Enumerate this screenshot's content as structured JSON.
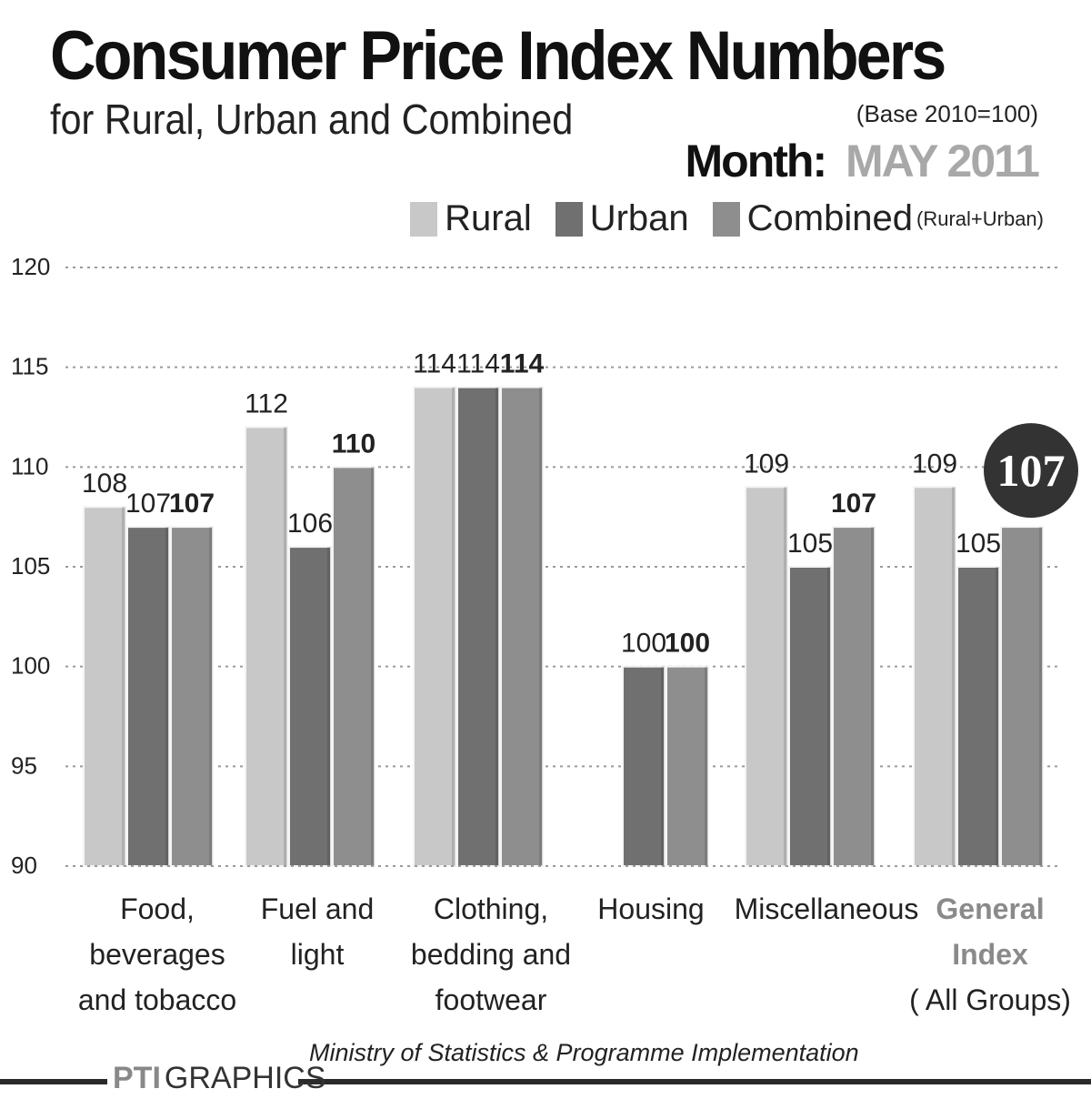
{
  "header": {
    "title": "Consumer Price Index Numbers",
    "subtitle": "for Rural, Urban and Combined",
    "base": "(Base 2010=100)",
    "month_label": "Month:",
    "month_value": "MAY 2011"
  },
  "legend": {
    "rural": "Rural",
    "urban": "Urban",
    "combined": "Combined",
    "combined_note": "(Rural+Urban)"
  },
  "footer": {
    "source": "Ministry of Statistics & Programme Implementation",
    "brand_pti": "PTI",
    "brand_graphics": "GRAPHICS"
  },
  "colors": {
    "rural": "#c8c8c8",
    "urban": "#707070",
    "combined": "#8e8e8e",
    "highlight_badge": "#333333",
    "general_index_label": "#8a8a8a"
  },
  "chart_data": {
    "type": "bar",
    "categories": [
      [
        "Food,",
        "beverages",
        "and tobacco"
      ],
      [
        "Fuel and",
        "light"
      ],
      [
        "Clothing,",
        "bedding and",
        "footwear"
      ],
      [
        "Housing"
      ],
      [
        "Miscellaneous"
      ],
      [
        "General",
        "Index",
        "( All Groups)"
      ]
    ],
    "series": [
      {
        "name": "Rural",
        "values": [
          108,
          112,
          114,
          null,
          109,
          109
        ]
      },
      {
        "name": "Urban",
        "values": [
          107,
          106,
          114,
          100,
          105,
          105
        ]
      },
      {
        "name": "Combined",
        "values": [
          107,
          110,
          114,
          100,
          107,
          107
        ]
      }
    ],
    "data_labels": [
      [
        "108",
        "107",
        "107"
      ],
      [
        "112",
        "106",
        "110"
      ],
      [
        "114",
        "114",
        "114"
      ],
      [
        "",
        "100",
        "100"
      ],
      [
        "109",
        "105",
        "107"
      ],
      [
        "109",
        "105",
        "107"
      ]
    ],
    "ylim": [
      90,
      120
    ],
    "yticks": [
      90,
      95,
      100,
      105,
      110,
      115,
      120
    ],
    "grid": true,
    "legend_position": "top-right",
    "highlight": {
      "category_index": 5,
      "series_index": 2,
      "label": "107"
    }
  }
}
